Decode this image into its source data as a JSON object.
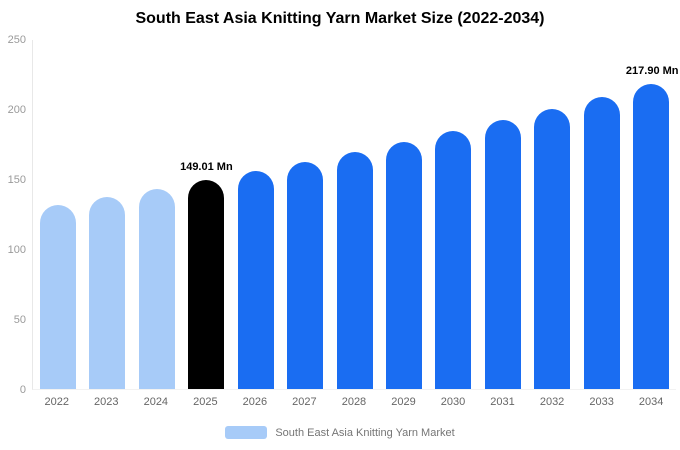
{
  "title": "South East Asia Knitting Yarn Market Size (2022-2034)",
  "colors": {
    "light": "#a7cbf8",
    "blue": "#1a6df2",
    "black": "#000000"
  },
  "legend": {
    "label": "South East Asia Knitting Yarn Market",
    "swatch_color": "#a7cbf8"
  },
  "chart_data": {
    "type": "bar",
    "title": "South East Asia Knitting Yarn Market Size (2022-2034)",
    "xlabel": "",
    "ylabel": "",
    "ylim": [
      0,
      250
    ],
    "yticks": [
      0,
      50,
      100,
      150,
      200,
      250
    ],
    "grid": false,
    "legend_position": "bottom",
    "categories": [
      "2022",
      "2023",
      "2024",
      "2025",
      "2026",
      "2027",
      "2028",
      "2029",
      "2030",
      "2031",
      "2032",
      "2033",
      "2034"
    ],
    "values": [
      131.3,
      137.0,
      142.9,
      149.01,
      155.4,
      162.1,
      169.1,
      176.4,
      184.0,
      191.9,
      200.2,
      208.9,
      217.9
    ],
    "bar_styles": [
      "light",
      "light",
      "light",
      "black",
      "blue",
      "blue",
      "blue",
      "blue",
      "blue",
      "blue",
      "blue",
      "blue",
      "blue"
    ],
    "annotations": [
      {
        "category": "2025",
        "text": "149.01 Mn"
      },
      {
        "category": "2034",
        "text": "217.90 Mn"
      }
    ]
  }
}
